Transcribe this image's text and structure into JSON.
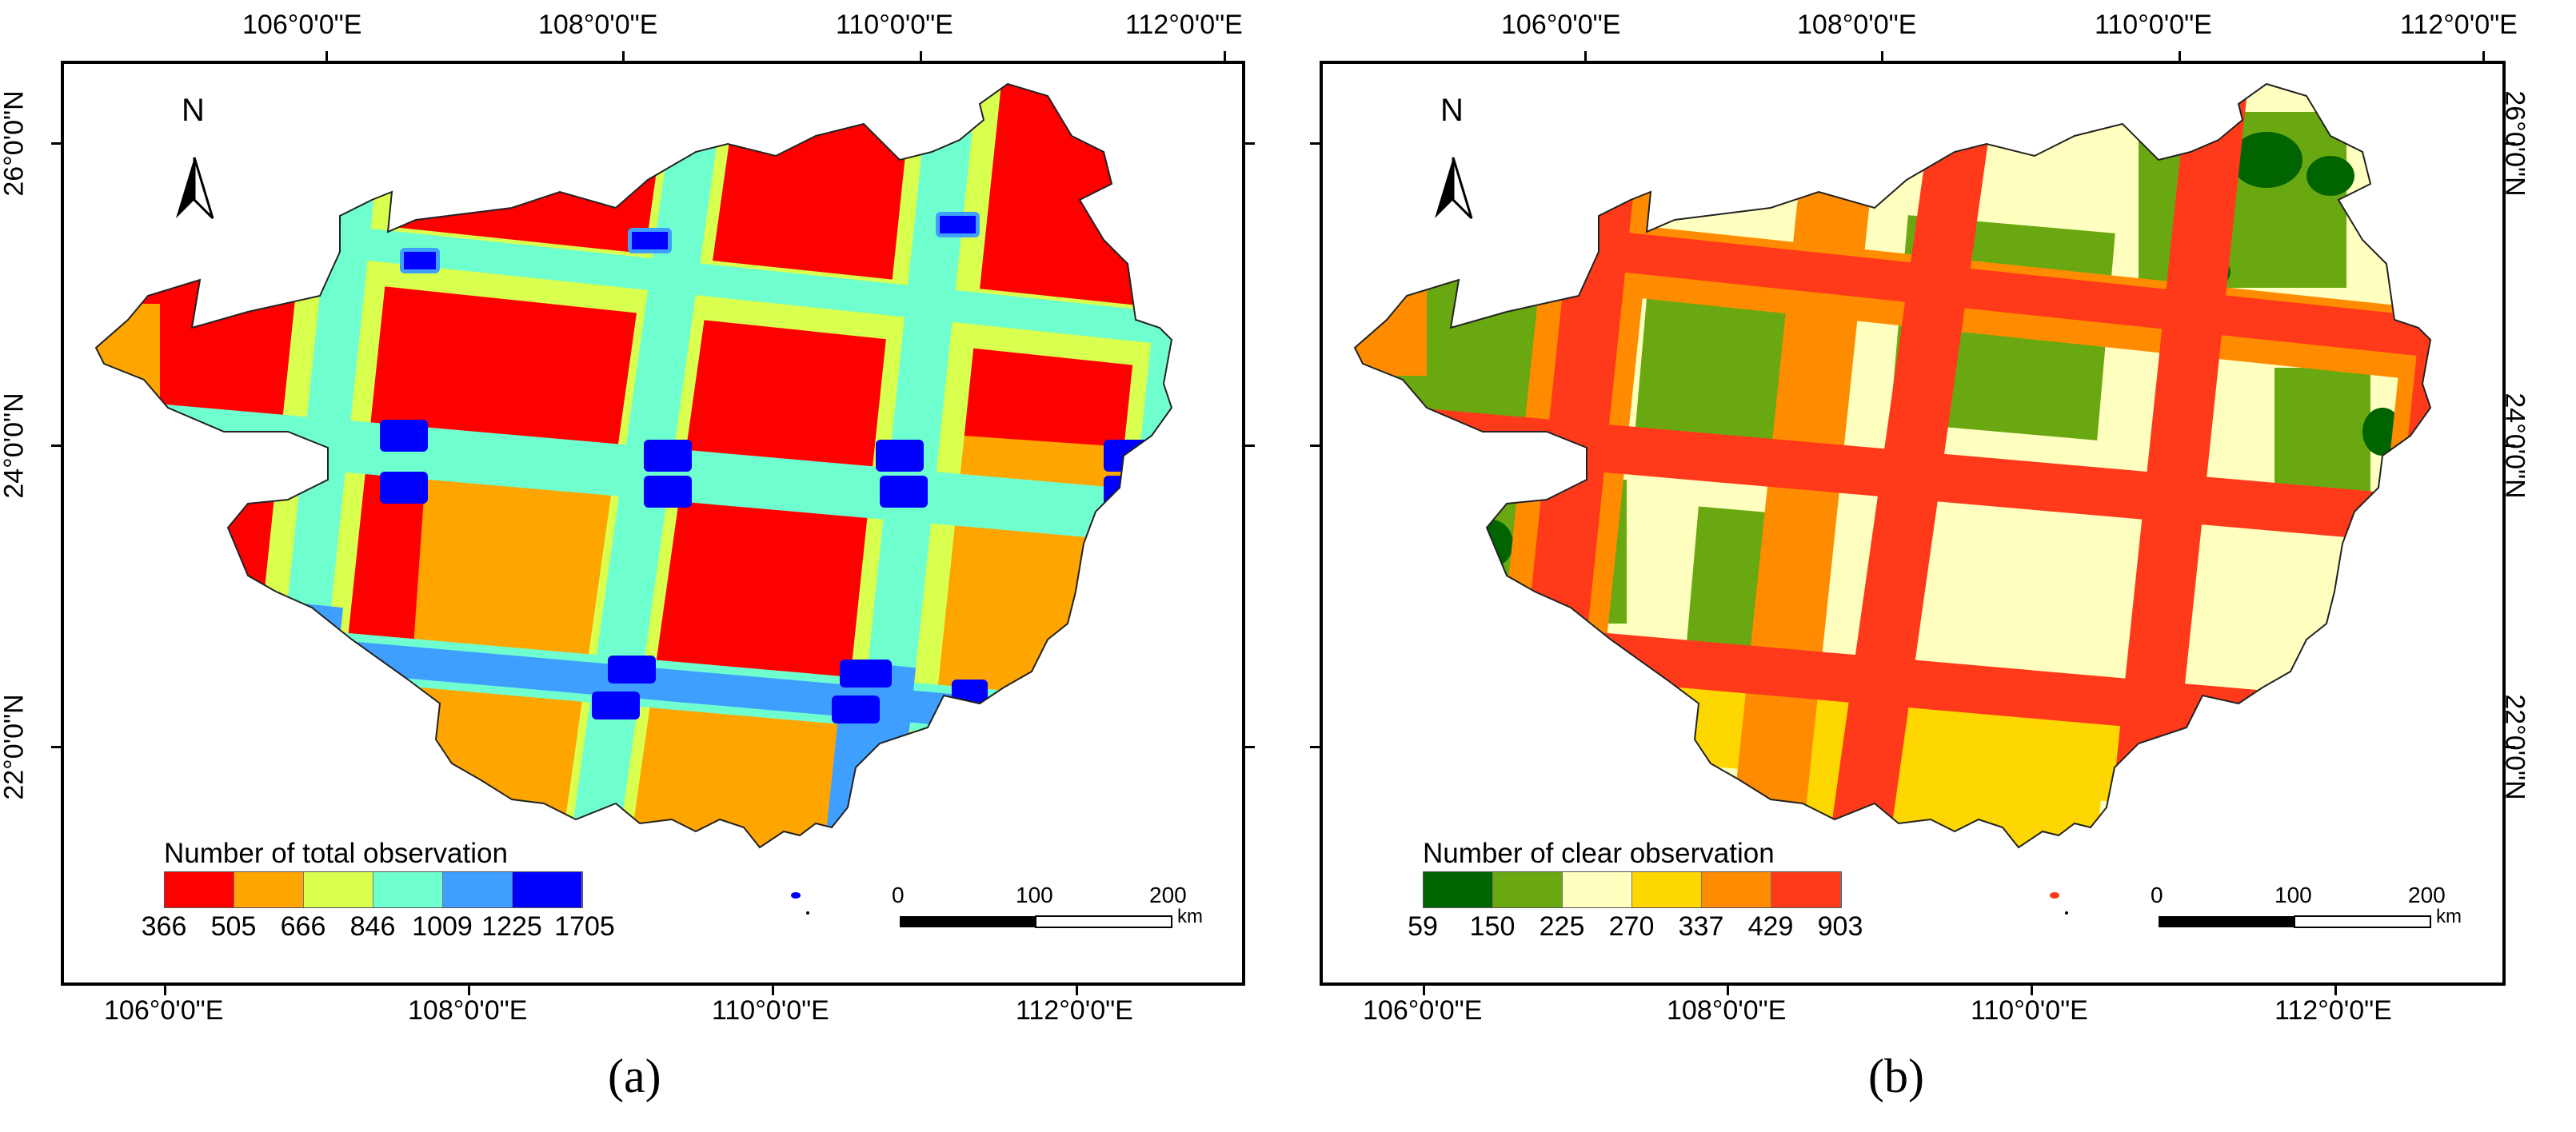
{
  "panels": [
    {
      "id": "a",
      "caption": "(a)",
      "legend_title": "Number of total observation",
      "legend_breaks": [
        "366",
        "505",
        "666",
        "846",
        "1009",
        "1225",
        "1705"
      ],
      "legend_colors": [
        "#ff0000",
        "#ffa500",
        "#d9ff4f",
        "#6fffcf",
        "#3f9fff",
        "#0000ff"
      ],
      "north_label": "N",
      "scale": {
        "ticks": [
          "0",
          "100",
          "200"
        ],
        "unit": "km"
      }
    },
    {
      "id": "b",
      "caption": "(b)",
      "legend_title": "Number of clear observation",
      "legend_breaks": [
        "59",
        "150",
        "225",
        "270",
        "337",
        "429",
        "903"
      ],
      "legend_colors": [
        "#006400",
        "#6aa812",
        "#ffffc0",
        "#ffd700",
        "#ff8c00",
        "#ff3a1a"
      ],
      "north_label": "N",
      "scale": {
        "ticks": [
          "0",
          "100",
          "200"
        ],
        "unit": "km"
      }
    }
  ],
  "axes": {
    "longitude_labels": [
      "106°0'0\"E",
      "108°0'0\"E",
      "110°0'0\"E",
      "112°0'0\"E"
    ],
    "latitude_labels": [
      "26°0'0\"N",
      "24°0'0\"N",
      "22°0'0\"N"
    ]
  }
}
